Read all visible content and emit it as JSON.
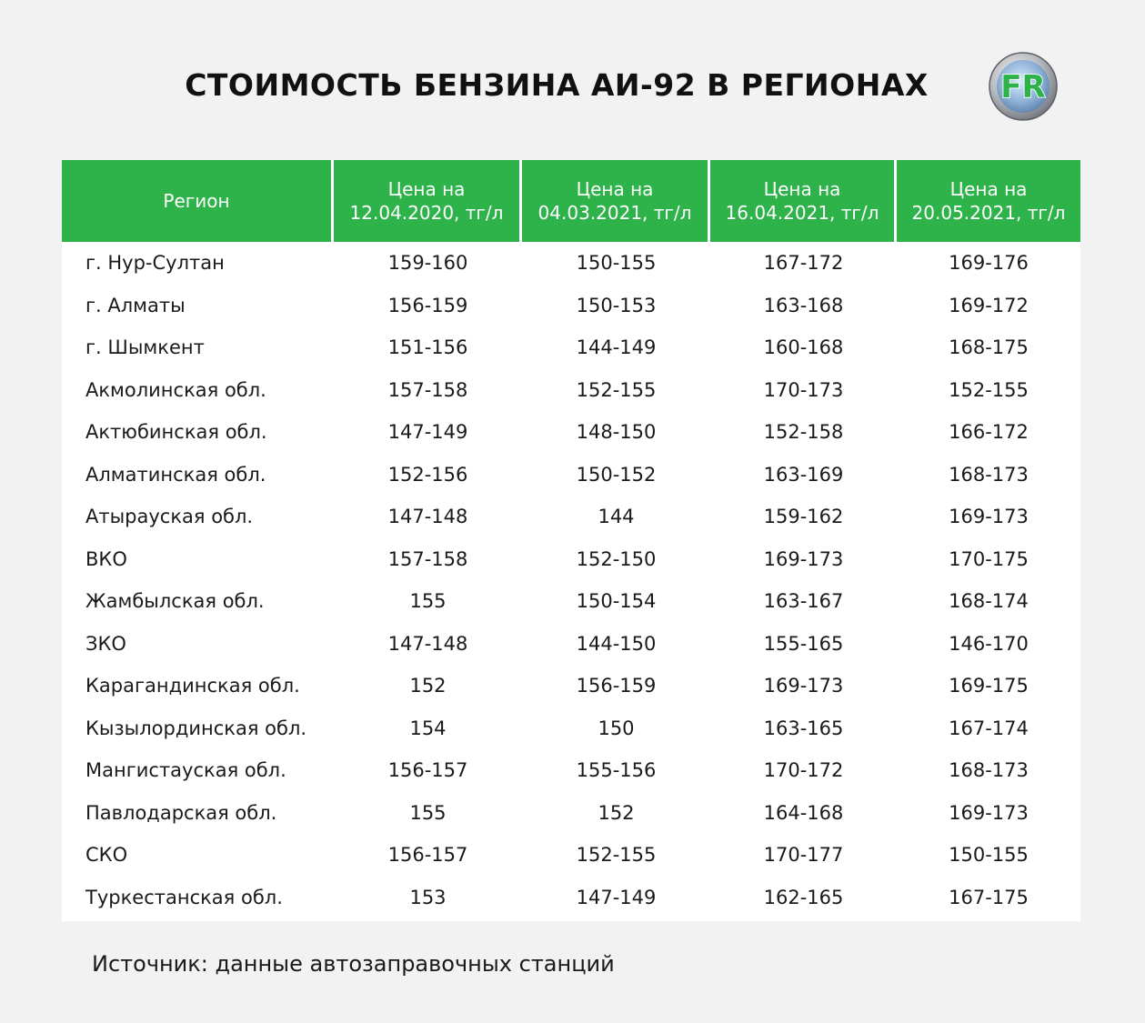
{
  "title": "СТОИМОСТЬ БЕНЗИНА АИ-92 В РЕГИОНАХ",
  "logo": {
    "text": "FR",
    "icon": "fr-logo-icon",
    "accent": "#2db34a"
  },
  "colors": {
    "header_bg": "#2db34a",
    "header_text": "#ffffff",
    "page_bg": "#f2f2f2",
    "table_bg": "#ffffff"
  },
  "table": {
    "headers": [
      "Регион",
      "Цена на\n12.04.2020, тг/л",
      "Цена на\n04.03.2021, тг/л",
      "Цена на\n16.04.2021, тг/л",
      "Цена на\n20.05.2021, тг/л"
    ],
    "rows": [
      [
        "г. Нур-Султан",
        "159-160",
        "150-155",
        "167-172",
        "169-176"
      ],
      [
        "г. Алматы",
        "156-159",
        "150-153",
        "163-168",
        "169-172"
      ],
      [
        "г. Шымкент",
        "151-156",
        "144-149",
        "160-168",
        "168-175"
      ],
      [
        "Акмолинская обл.",
        "157-158",
        "152-155",
        "170-173",
        "152-155"
      ],
      [
        "Актюбинская обл.",
        "147-149",
        "148-150",
        "152-158",
        "166-172"
      ],
      [
        "Алматинская обл.",
        "152-156",
        "150-152",
        "163-169",
        "168-173"
      ],
      [
        "Атырауская обл.",
        "147-148",
        "144",
        "159-162",
        "169-173"
      ],
      [
        "ВКО",
        "157-158",
        "152-150",
        "169-173",
        "170-175"
      ],
      [
        "Жамбылская обл.",
        "155",
        "150-154",
        "163-167",
        "168-174"
      ],
      [
        "ЗКО",
        "147-148",
        "144-150",
        "155-165",
        "146-170"
      ],
      [
        "Карагандинская обл.",
        "152",
        "156-159",
        "169-173",
        "169-175"
      ],
      [
        "Кызылординская обл.",
        "154",
        "150",
        "163-165",
        "167-174"
      ],
      [
        "Мангистауская обл.",
        "156-157",
        "155-156",
        "170-172",
        "168-173"
      ],
      [
        "Павлодарская обл.",
        "155",
        "152",
        "164-168",
        "169-173"
      ],
      [
        "СКО",
        "156-157",
        "152-155",
        "170-177",
        "150-155"
      ],
      [
        "Туркестанская обл.",
        "153",
        "147-149",
        "162-165",
        "167-175"
      ]
    ]
  },
  "source": "Источник: данные автозаправочных станций"
}
